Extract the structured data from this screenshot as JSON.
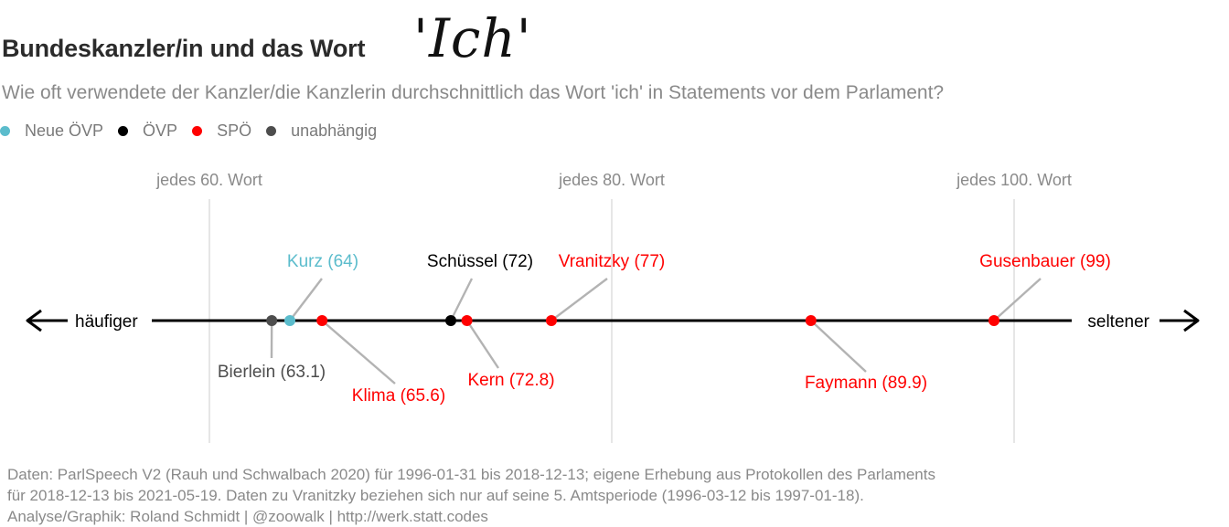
{
  "title": "Bundeskanzler/in und das Wort",
  "title_word": "'Ich'",
  "subtitle": "Wie oft verwendete der Kanzler/die Kanzlerin durchschnittlich das Wort 'ich' in Statements vor dem Parlament?",
  "legend": [
    {
      "label": "Neue ÖVP",
      "color": "#5bbccc"
    },
    {
      "label": "ÖVP",
      "color": "#000000"
    },
    {
      "label": "SPÖ",
      "color": "#ff0000"
    },
    {
      "label": "unabhängig",
      "color": "#4d4d4d"
    }
  ],
  "caption": [
    "Daten: ParlSpeech V2 (Rauh und Schwalbach 2020) für 1996-01-31 bis 2018-12-13; eigene Erhebung aus Protokollen des Parlaments",
    "für 2018-12-13 bis 2021-05-19. Daten zu Vranitzky beziehen sich nur auf seine 5. Amtsperiode (1996-03-12 bis 1997-01-18).",
    "Analyse/Graphik: Roland Schmidt | @zoowalk | http://werk.statt.codes"
  ],
  "chart_data": {
    "type": "scatter",
    "orientation": "horizontal",
    "xlim": [
      50,
      105
    ],
    "ticks": [
      {
        "value": 60,
        "label": "jedes 60. Wort"
      },
      {
        "value": 80,
        "label": "jedes 80. Wort"
      },
      {
        "value": 100,
        "label": "jedes 100. Wort"
      }
    ],
    "left_label": "häufiger",
    "right_label": "seltener",
    "points": [
      {
        "name": "Bierlein",
        "value": 63.1,
        "label": "Bierlein (63.1)",
        "party": "unabhängig",
        "color": "#4d4d4d",
        "label_pos": "below"
      },
      {
        "name": "Kurz",
        "value": 64,
        "label": "Kurz (64)",
        "party": "Neue ÖVP",
        "color": "#5bbccc",
        "label_pos": "above"
      },
      {
        "name": "Klima",
        "value": 65.6,
        "label": "Klima (65.6)",
        "party": "SPÖ",
        "color": "#ff0000",
        "label_pos": "below"
      },
      {
        "name": "Schüssel",
        "value": 72,
        "label": "Schüssel (72)",
        "party": "ÖVP",
        "color": "#000000",
        "label_pos": "above"
      },
      {
        "name": "Kern",
        "value": 72.8,
        "label": "Kern (72.8)",
        "party": "SPÖ",
        "color": "#ff0000",
        "label_pos": "below"
      },
      {
        "name": "Vranitzky",
        "value": 77,
        "label": "Vranitzky (77)",
        "party": "SPÖ",
        "color": "#ff0000",
        "label_pos": "above"
      },
      {
        "name": "Faymann",
        "value": 89.9,
        "label": "Faymann (89.9)",
        "party": "SPÖ",
        "color": "#ff0000",
        "label_pos": "below"
      },
      {
        "name": "Gusenbauer",
        "value": 99,
        "label": "Gusenbauer (99)",
        "party": "SPÖ",
        "color": "#ff0000",
        "label_pos": "above"
      }
    ]
  }
}
